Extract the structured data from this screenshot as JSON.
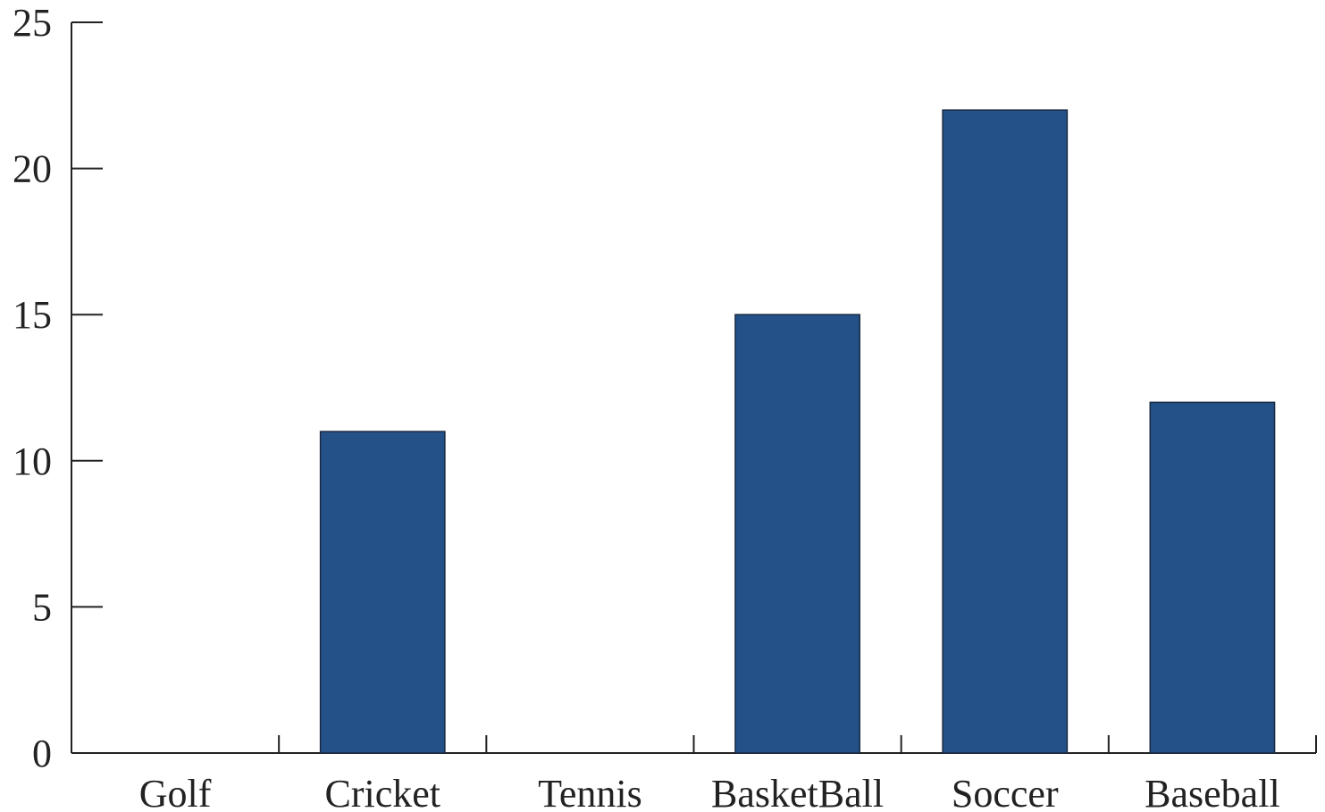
{
  "chart_data": {
    "type": "bar",
    "categories": [
      "Golf",
      "Cricket",
      "Tennis",
      "BasketBall",
      "Soccer",
      "Baseball"
    ],
    "values": [
      0,
      11,
      0,
      15,
      22,
      12
    ],
    "title": "",
    "xlabel": "",
    "ylabel": "",
    "ylim": [
      0,
      25
    ],
    "yticks": [
      0,
      5,
      10,
      15,
      20,
      25
    ],
    "grid": false,
    "colors": {
      "bar": "#235188",
      "axis": "#222222"
    }
  }
}
